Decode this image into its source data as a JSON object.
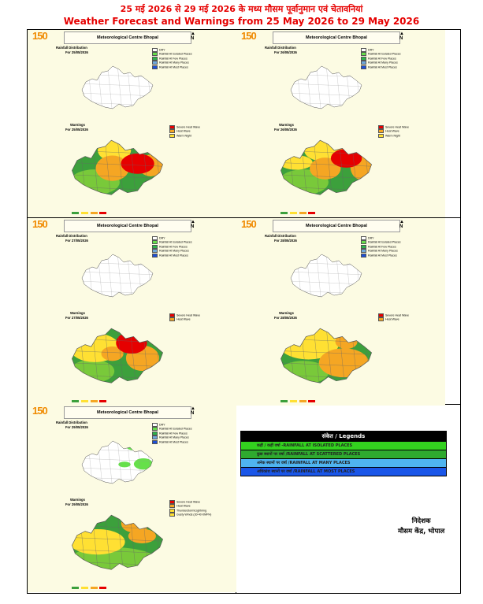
{
  "title_hindi": "25 मई 2026 से 29 मई 2026 के मध्य मौसम पूर्वानुमान एवं चेतावनियां",
  "title_english": "Weather Forecast and Warnings from 25 May 2026 to 29 May 2026",
  "panels": [
    {
      "logo": "150",
      "header": "Meteorological Centre Bhopal",
      "compass": "N",
      "rain_title": "Rainfall Distribution",
      "rain_for": "For 25/05/2026",
      "rain_legend": [
        "DRY",
        "Rainfall At Isolated Places",
        "Rainfall At Few Places",
        "Rainfall At Many Places",
        "Rainfall At Most Places"
      ],
      "warn_title": "Warnings",
      "warn_for": "For 25/05/2026",
      "warn_legend": [
        "Severe Heat Wave",
        "Heat Wave",
        "Warm Night"
      ]
    },
    {
      "logo": "150",
      "header": "Meteorological Centre Bhopal",
      "compass": "N",
      "rain_title": "Rainfall Distribution",
      "rain_for": "For 26/05/2026",
      "rain_legend": [
        "DRY",
        "Rainfall At Isolated Places",
        "Rainfall At Few Places",
        "Rainfall At Many Places",
        "Rainfall At Most Places"
      ],
      "warn_title": "Warnings",
      "warn_for": "For 26/05/2026",
      "warn_legend": [
        "Severe Heat Wave",
        "Heat Wave",
        "Warm Night"
      ]
    },
    {
      "logo": "150",
      "header": "Meteorological Centre Bhopal",
      "compass": "N",
      "rain_title": "Rainfall Distribution",
      "rain_for": "For 27/05/2026",
      "rain_legend": [
        "DRY",
        "Rainfall At Isolated Places",
        "Rainfall At Few Places",
        "Rainfall At Many Places",
        "Rainfall At Most Places"
      ],
      "warn_title": "Warnings",
      "warn_for": "For 27/05/2026",
      "warn_legend": [
        "Severe Heat Wave",
        "Heat Wave"
      ]
    },
    {
      "logo": "150",
      "header": "Meteorological Centre Bhopal",
      "compass": "N",
      "rain_title": "Rainfall Distribution",
      "rain_for": "For 28/05/2026",
      "rain_legend": [
        "DRY",
        "Rainfall At Isolated Places",
        "Rainfall At Few Places",
        "Rainfall At Many Places",
        "Rainfall At Most Places"
      ],
      "warn_title": "Warnings",
      "warn_for": "For 28/05/2026",
      "warn_legend": [
        "Severe Heat Wave",
        "Heat Wave"
      ]
    },
    {
      "logo": "150",
      "header": "Meteorological Centre Bhopal",
      "compass": "N",
      "rain_title": "Rainfall Distribution",
      "rain_for": "For 29/05/2026",
      "rain_legend": [
        "DRY",
        "Rainfall At Isolated Places",
        "Rainfall At Few Places",
        "Rainfall At Many Places",
        "Rainfall At Most Places"
      ],
      "warn_title": "Warnings",
      "warn_for": "For 29/05/2026",
      "warn_legend": [
        "Severe Heat Wave",
        "Heat Wave",
        "Thunderstorm/Lightning",
        "Gusty Winds (30-40 KMPH)"
      ]
    }
  ],
  "rain_colors": [
    "#ffffff",
    "#66e04a",
    "#2db34a",
    "#6fa8dc",
    "#1c4fd6"
  ],
  "warn_colors": [
    "#e60000",
    "#f5a623",
    "#ffe033",
    "#79c93a",
    "#3ca03c"
  ],
  "legend_box": {
    "heading": "संकेत / Legends",
    "rows": [
      {
        "text": "कहीं / कहीं वर्षा -RAINFALL AT ISOLATED PLACES",
        "color": "#33d11f"
      },
      {
        "text": "कुछ स्थानों पर वर्षा /RAINFALL AT SCATTERED PLACES",
        "color": "#2faa2f"
      },
      {
        "text": "अनेक स्थानों पर वर्षा /RAINFALL AT MANY PLACES",
        "color": "#4fb4f0"
      },
      {
        "text": "अधिकांश स्थानों पर वर्षा /RAINFALL AT MOST PLACES",
        "color": "#1a56e8"
      }
    ]
  },
  "director": [
    "निदेशक",
    "मौसम केंद्र, भोपाल"
  ]
}
